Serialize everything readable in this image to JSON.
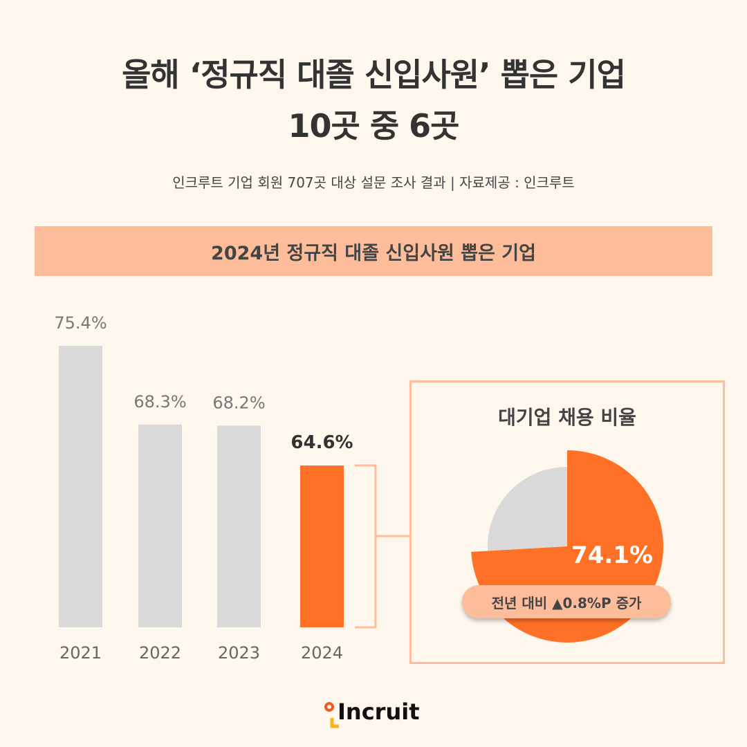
{
  "title_line1": "올해 ‘정규직 대졸 신입사원’ 뽑은 기업",
  "title_line2": "10곳 중 6곳",
  "subtitle": "인크루트 기업 회원 707곳 대상 설문 조사 결과 | 자료제공 : 인크루트",
  "banner": "2024년 정규직 대졸 신입사원 뽑은 기업",
  "logo": "Incruit",
  "colors": {
    "highlight": "#ff7127",
    "base": "#d9d9d9",
    "accent_light": "#fdbd9a",
    "background": "#fef7ee"
  },
  "chart_data": [
    {
      "type": "bar",
      "categories": [
        "2021",
        "2022",
        "2023",
        "2024"
      ],
      "values": [
        75.4,
        68.3,
        68.2,
        64.6
      ],
      "data_labels": [
        "75.4%",
        "68.3%",
        "68.2%",
        "64.6%"
      ],
      "highlight": "2024",
      "ylim": [
        50,
        76
      ],
      "grid": false
    },
    {
      "type": "pie",
      "title": "대기업 채용 비율",
      "slices": [
        {
          "value": 74.1,
          "label": "74.1%"
        },
        {
          "value": 25.9
        }
      ],
      "annotation": "전년 대비 ▲0.8%P 증가"
    }
  ]
}
